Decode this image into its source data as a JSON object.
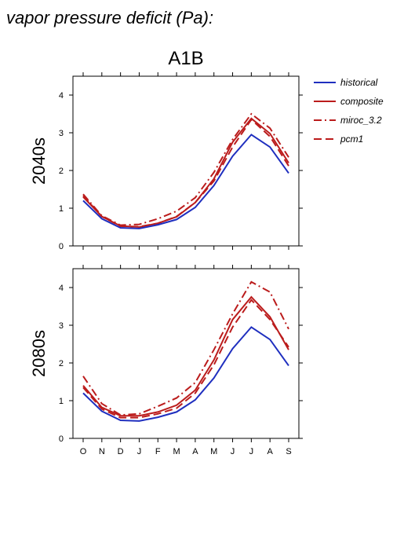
{
  "page": {
    "title": "vapor pressure deficit (Pa):",
    "scenario": "A1B"
  },
  "legend": {
    "placement": "top-right",
    "items": [
      {
        "label": "historical",
        "color": "#1f2fbf",
        "dash": "solid"
      },
      {
        "label": "composite",
        "color": "#bb1c1c",
        "dash": "solid"
      },
      {
        "label": "miroc_3.2",
        "color": "#bb1c1c",
        "dash": "dashdot"
      },
      {
        "label": "pcm1",
        "color": "#bb1c1c",
        "dash": "dashed"
      }
    ]
  },
  "chart_data": [
    {
      "type": "line",
      "panel_label": "2040s",
      "categories": [
        "O",
        "N",
        "D",
        "J",
        "F",
        "M",
        "A",
        "M",
        "J",
        "J",
        "A",
        "S"
      ],
      "ylim": [
        0,
        4.5
      ],
      "yticks": [
        0,
        1,
        2,
        3,
        4
      ],
      "grid": false,
      "series": [
        {
          "name": "historical",
          "values": [
            1.2,
            0.72,
            0.48,
            0.46,
            0.56,
            0.7,
            1.02,
            1.6,
            2.38,
            2.95,
            2.62,
            1.93
          ]
        },
        {
          "name": "composite",
          "values": [
            1.3,
            0.78,
            0.53,
            0.5,
            0.6,
            0.77,
            1.15,
            1.78,
            2.75,
            3.38,
            2.98,
            2.2
          ]
        },
        {
          "name": "miroc_3.2",
          "values": [
            1.37,
            0.8,
            0.55,
            0.57,
            0.72,
            0.92,
            1.28,
            1.95,
            2.82,
            3.5,
            3.12,
            2.35
          ]
        },
        {
          "name": "pcm1",
          "values": [
            1.33,
            0.78,
            0.52,
            0.51,
            0.6,
            0.78,
            1.15,
            1.72,
            2.62,
            3.35,
            2.9,
            2.12
          ]
        }
      ]
    },
    {
      "type": "line",
      "panel_label": "2080s",
      "categories": [
        "O",
        "N",
        "D",
        "J",
        "F",
        "M",
        "A",
        "M",
        "J",
        "J",
        "A",
        "S"
      ],
      "ylim": [
        0,
        4.5
      ],
      "yticks": [
        0,
        1,
        2,
        3,
        4
      ],
      "grid": false,
      "series": [
        {
          "name": "historical",
          "values": [
            1.2,
            0.72,
            0.48,
            0.46,
            0.56,
            0.7,
            1.02,
            1.6,
            2.38,
            2.95,
            2.62,
            1.93
          ]
        },
        {
          "name": "composite",
          "values": [
            1.4,
            0.82,
            0.6,
            0.6,
            0.7,
            0.88,
            1.28,
            2.08,
            3.15,
            3.75,
            3.22,
            2.35
          ]
        },
        {
          "name": "miroc_3.2",
          "values": [
            1.65,
            0.92,
            0.62,
            0.65,
            0.85,
            1.07,
            1.48,
            2.35,
            3.3,
            4.15,
            3.88,
            2.9
          ]
        },
        {
          "name": "pcm1",
          "values": [
            1.35,
            0.78,
            0.55,
            0.55,
            0.65,
            0.8,
            1.2,
            1.95,
            2.95,
            3.67,
            3.15,
            2.42
          ]
        }
      ]
    }
  ]
}
